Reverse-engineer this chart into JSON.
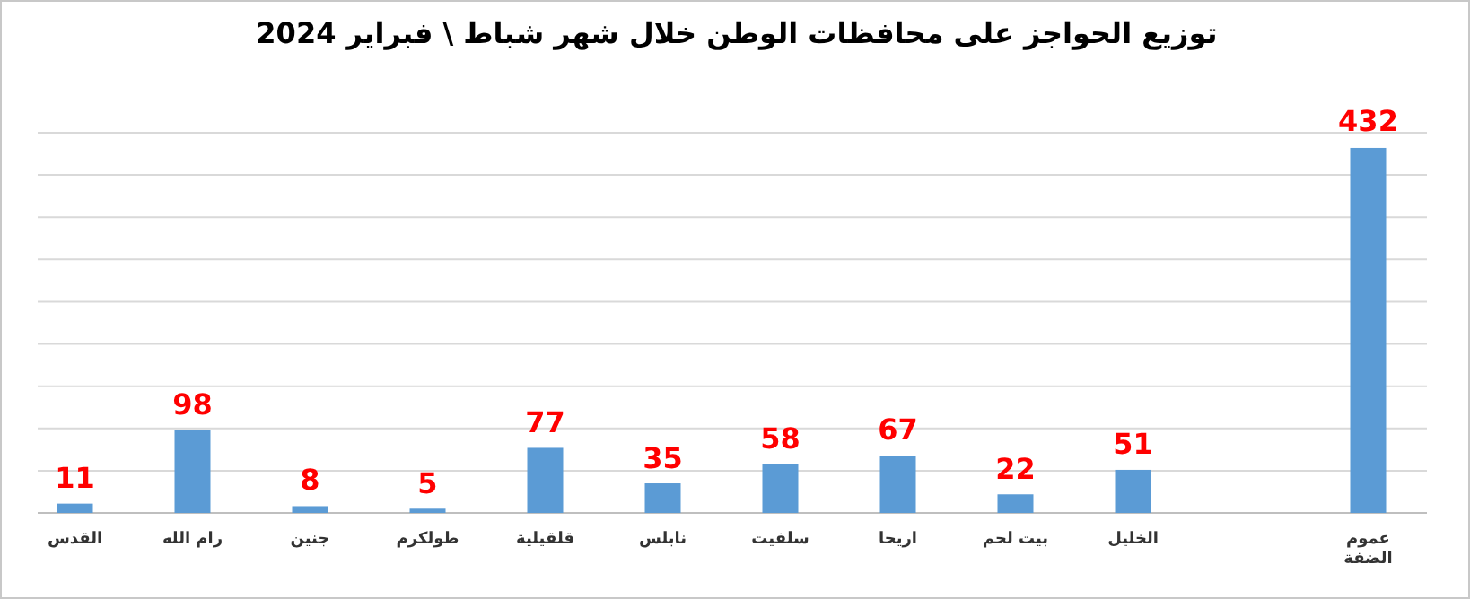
{
  "chart_data": {
    "type": "bar",
    "title": "توزيع  الحواجز على محافظات الوطن خلال شهر شباط \\ فبراير 2024",
    "categories": [
      "القدس",
      "رام الله",
      "جنين",
      "طولكرم",
      "قلقيلية",
      "نابلس",
      "سلفيت",
      "اريحا",
      "بيت لحم",
      "الخليل",
      null,
      "عموم الضفة"
    ],
    "values": [
      11,
      98,
      8,
      5,
      77,
      35,
      58,
      67,
      22,
      51,
      null,
      432
    ],
    "color": "#5b9bd5",
    "ylim": [
      0,
      450
    ],
    "yticks": [
      {
        "value": 0,
        "label": null
      },
      {
        "value": 50,
        "label": null
      },
      {
        "value": 100,
        "label": null
      },
      {
        "value": 150,
        "label": null
      },
      {
        "value": 200,
        "label": null
      },
      {
        "value": 250,
        "label": null
      },
      {
        "value": 300,
        "label": null
      },
      {
        "value": 350,
        "label": null
      },
      {
        "value": 400,
        "label": null
      },
      {
        "value": 450,
        "label": null
      }
    ],
    "grid": "y",
    "tick_labels": "x",
    "data_labels": true
  }
}
